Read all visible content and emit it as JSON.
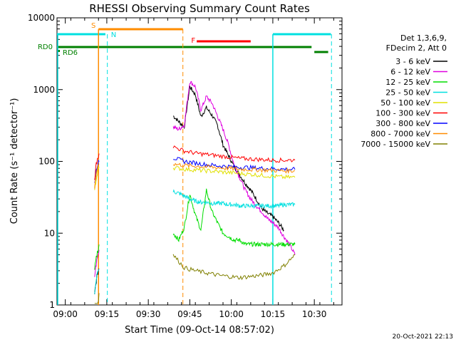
{
  "chart_data": {
    "type": "line",
    "title": "RHESSI Observing Summary Count Rates",
    "xlabel": "Start Time (09-Oct-14 08:57:02)",
    "ylabel": "Count Rate (s⁻¹ detector⁻¹)",
    "yscale": "log",
    "xlim_minutes_after_0857": [
      0,
      103
    ],
    "ylim": [
      1,
      10000
    ],
    "x_ticks": [
      "09:00",
      "09:15",
      "09:30",
      "09:45",
      "10:00",
      "10:15",
      "10:30"
    ],
    "y_ticks": [
      "1",
      "10",
      "100",
      "1000",
      "10000"
    ],
    "legend_header": [
      "Det 1,3,6,9,",
      "FDecim 2, Att 0"
    ],
    "series": [
      {
        "name": "3 - 6 keV",
        "color": "#000000",
        "x": [
          42,
          44,
          46,
          48,
          50,
          52,
          54,
          56,
          58,
          60,
          62,
          64,
          66,
          68,
          70,
          72,
          74,
          76,
          78,
          80,
          82
        ],
        "y": [
          430,
          360,
          300,
          1100,
          850,
          420,
          560,
          440,
          320,
          170,
          120,
          85,
          65,
          50,
          40,
          30,
          22,
          19,
          17,
          14,
          11
        ]
      },
      {
        "name": "6 - 12 keV",
        "color": "#e000e0",
        "x": [
          42,
          44,
          46,
          48,
          50,
          52,
          54,
          56,
          58,
          60,
          62,
          64,
          66,
          68,
          70,
          72,
          74,
          76,
          78,
          80,
          82,
          84,
          86
        ],
        "y": [
          300,
          280,
          320,
          1300,
          1100,
          520,
          800,
          650,
          430,
          280,
          170,
          90,
          60,
          40,
          30,
          24,
          20,
          16,
          14,
          12,
          9,
          7,
          5
        ]
      },
      {
        "name": "12 - 25 keV",
        "color": "#00dd00",
        "x": [
          42,
          44,
          46,
          48,
          50,
          52,
          54,
          56,
          58,
          60,
          62,
          64,
          66,
          68,
          70,
          72,
          74,
          76,
          78,
          80,
          82,
          84,
          86
        ],
        "y": [
          10,
          8,
          12,
          35,
          18,
          11,
          40,
          20,
          14,
          10,
          9,
          8,
          8,
          7,
          7,
          7,
          7,
          7,
          7,
          7,
          7,
          7,
          7
        ]
      },
      {
        "name": "25 - 50 keV",
        "color": "#00e0e0",
        "x": [
          42,
          44,
          46,
          48,
          50,
          52,
          54,
          56,
          58,
          60,
          62,
          64,
          66,
          68,
          70,
          72,
          74,
          76,
          78,
          80,
          82,
          84,
          86
        ],
        "y": [
          38,
          36,
          33,
          30,
          28,
          27,
          27,
          26,
          26,
          26,
          25,
          25,
          24,
          24,
          24,
          24,
          24,
          24,
          24,
          24,
          25,
          25,
          25
        ]
      },
      {
        "name": "50 - 100 keV",
        "color": "#e0e000",
        "x": [
          42,
          46,
          50,
          54,
          58,
          62,
          66,
          70,
          74,
          78,
          82,
          86
        ],
        "y": [
          82,
          78,
          76,
          74,
          72,
          70,
          68,
          66,
          64,
          62,
          60,
          60
        ]
      },
      {
        "name": "100 - 300 keV",
        "color": "#ff0000",
        "x": [
          42,
          46,
          50,
          54,
          58,
          62,
          66,
          70,
          74,
          78,
          82,
          86
        ],
        "y": [
          160,
          140,
          130,
          125,
          120,
          115,
          110,
          108,
          106,
          104,
          104,
          104
        ]
      },
      {
        "name": "300 - 800 keV",
        "color": "#0000ff",
        "x": [
          42,
          46,
          50,
          54,
          58,
          62,
          66,
          70,
          74,
          78,
          82,
          86
        ],
        "y": [
          112,
          100,
          95,
          90,
          87,
          85,
          83,
          82,
          80,
          79,
          78,
          77
        ]
      },
      {
        "name": "800 - 7000 keV",
        "color": "#ff8c00",
        "x": [
          42,
          46,
          50,
          54,
          58,
          62,
          66,
          70,
          74,
          78,
          82,
          86
        ],
        "y": [
          92,
          88,
          86,
          84,
          82,
          80,
          78,
          77,
          76,
          75,
          74,
          74
        ]
      },
      {
        "name": "7000 - 15000 keV",
        "color": "#808000",
        "x": [
          42,
          46,
          50,
          54,
          58,
          62,
          66,
          70,
          74,
          78,
          82,
          86
        ],
        "y": [
          5,
          3.3,
          3,
          2.8,
          2.6,
          2.5,
          2.4,
          2.5,
          2.6,
          2.8,
          3.5,
          5
        ]
      }
    ],
    "flag_labels": {
      "saa": "S",
      "night": "N",
      "flare": "F",
      "rd0": "RD0",
      "rd6": "RD6"
    },
    "timestamp": "20-Oct-2021 22:13"
  }
}
